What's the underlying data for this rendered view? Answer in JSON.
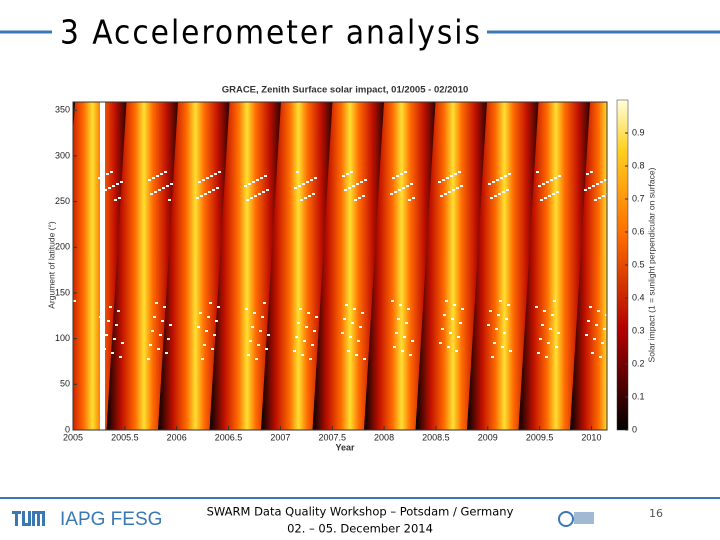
{
  "slide": {
    "title": "3 Accelerometer analysis",
    "footer": {
      "institutes": "IAPG FESG",
      "line1": "SWARM Data Quality Workshop – Potsdam / Germany",
      "line2": "02. – 05. December 2014",
      "page": "16"
    }
  },
  "figure": {
    "title": "GRACE, Zenith Surface solar impact, 01/2005 - 02/2010",
    "x_label": "Year",
    "y_label": "Argument of latitude (°)",
    "colorbar_label": "Solar impact (1 = sunlight perpendicular on surface)",
    "xlim": [
      2005,
      2010.15
    ],
    "xticks": [
      2005,
      2005.5,
      2006,
      2006.5,
      2007,
      2007.5,
      2008,
      2008.5,
      2009,
      2009.5,
      2010
    ],
    "ylim": [
      0,
      359
    ],
    "yticks": [
      0,
      50,
      100,
      150,
      200,
      250,
      300,
      350
    ],
    "clim": [
      0,
      1
    ],
    "cticks": [
      0,
      0.1,
      0.2,
      0.3,
      0.4,
      0.5,
      0.6,
      0.7,
      0.8,
      0.9
    ]
  }
}
